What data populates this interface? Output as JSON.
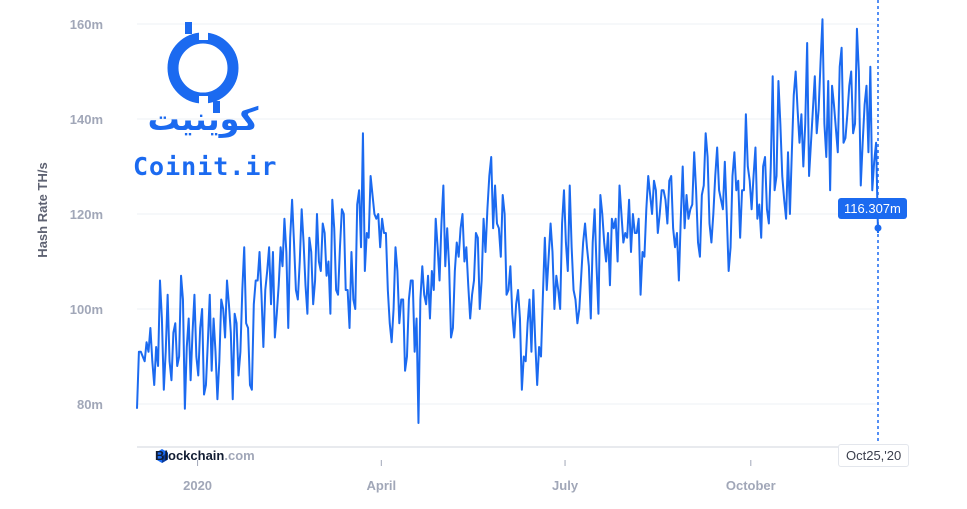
{
  "chart_data": {
    "type": "line",
    "ylabel": "Hash Rate TH/s",
    "y_ticks": [
      "80m",
      "100m",
      "120m",
      "140m",
      "160m"
    ],
    "y_tick_values": [
      80,
      100,
      120,
      140,
      160
    ],
    "ylim": [
      74,
      163
    ],
    "x_ticks": [
      "2020",
      "April",
      "July",
      "October"
    ],
    "x_tick_days": [
      30,
      121,
      212,
      304
    ],
    "xlim_days": [
      0,
      367
    ],
    "grid": true,
    "color": "#1b6af0",
    "tooltip": {
      "value": "116.307m",
      "date": "Oct25,'20"
    },
    "series": [
      {
        "values": [
          79,
          91,
          91,
          90,
          89,
          93,
          91,
          96,
          89,
          84,
          92,
          88,
          106,
          98,
          83,
          91,
          103,
          89,
          85,
          95,
          97,
          88,
          90,
          107,
          102,
          79,
          92,
          98,
          85,
          95,
          103,
          90,
          86,
          96,
          100,
          82,
          84,
          93,
          103,
          87,
          98,
          91,
          81,
          89,
          102,
          100,
          94,
          106,
          101,
          95,
          81,
          99,
          97,
          86,
          91,
          104,
          113,
          97,
          96,
          84,
          83,
          101,
          106,
          106,
          112,
          103,
          92,
          104,
          108,
          113,
          101,
          112,
          94,
          99,
          105,
          113,
          109,
          119,
          112,
          96,
          115,
          123,
          114,
          104,
          102,
          110,
          121,
          114,
          105,
          99,
          115,
          112,
          101,
          106,
          120,
          110,
          108,
          118,
          116,
          107,
          110,
          99,
          123,
          117,
          104,
          103,
          113,
          121,
          120,
          104,
          104,
          96,
          112,
          102,
          100,
          122,
          125,
          113,
          137,
          108,
          116,
          115,
          128,
          124,
          120,
          119,
          120,
          113,
          119,
          116,
          116,
          104,
          97,
          93,
          100,
          113,
          108,
          97,
          102,
          102,
          87,
          90,
          102,
          106,
          106,
          91,
          98,
          76,
          102,
          109,
          103,
          101,
          107,
          98,
          108,
          104,
          119,
          113,
          106,
          118,
          126,
          109,
          117,
          109,
          94,
          96,
          108,
          114,
          111,
          117,
          120,
          110,
          113,
          105,
          98,
          103,
          106,
          116,
          115,
          100,
          106,
          119,
          112,
          121,
          128,
          132,
          117,
          126,
          118,
          117,
          111,
          124,
          120,
          103,
          104,
          109,
          99,
          94,
          101,
          104,
          98,
          83,
          90,
          89,
          97,
          102,
          91,
          104,
          93,
          84,
          92,
          90,
          103,
          115,
          104,
          111,
          118,
          112,
          100,
          107,
          104,
          100,
          118,
          125,
          114,
          108,
          126,
          113,
          104,
          102,
          97,
          100,
          107,
          114,
          118,
          113,
          109,
          98,
          114,
          121,
          109,
          99,
          124,
          120,
          114,
          110,
          116,
          105,
          119,
          117,
          119,
          110,
          126,
          120,
          114,
          116,
          115,
          123,
          112,
          120,
          116,
          116,
          119,
          103,
          112,
          111,
          121,
          128,
          124,
          120,
          127,
          125,
          116,
          120,
          125,
          125,
          123,
          118,
          127,
          128,
          117,
          113,
          116,
          106,
          119,
          130,
          117,
          124,
          119,
          121,
          122,
          133,
          125,
          114,
          111,
          124,
          126,
          137,
          132,
          118,
          114,
          120,
          128,
          134,
          125,
          123,
          121,
          131,
          120,
          108,
          113,
          128,
          133,
          125,
          127,
          115,
          125,
          125,
          141,
          130,
          127,
          121,
          128,
          134,
          119,
          122,
          115,
          130,
          132,
          121,
          118,
          130,
          149,
          125,
          128,
          148,
          139,
          128,
          123,
          119,
          133,
          120,
          133,
          145,
          150,
          142,
          135,
          141,
          130,
          139,
          156,
          128,
          135,
          142,
          149,
          137,
          142,
          152,
          161,
          139,
          132,
          148,
          125,
          147,
          143,
          138,
          133,
          151,
          155,
          135,
          136,
          141,
          147,
          150,
          137,
          139,
          159,
          150,
          126,
          135,
          143,
          147,
          133,
          151,
          125,
          131,
          135,
          116
        ]
      }
    ]
  },
  "logo": {
    "persian": "کوینیت",
    "latin": "Coinit.ir"
  },
  "watermark": {
    "brand": "Blockchain",
    "domain": ".com"
  }
}
